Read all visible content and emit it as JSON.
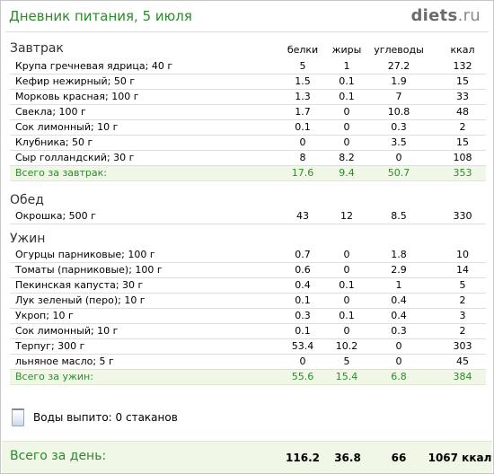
{
  "header": {
    "title": "Дневник питания, 5 июля",
    "logo_main": "diets",
    "logo_tld": ".ru"
  },
  "columns": {
    "protein": "белки",
    "fat": "жиры",
    "carbs": "углеводы",
    "kcal": "ккал"
  },
  "breakfast": {
    "title": "Завтрак",
    "items": [
      {
        "name": "Крупа гречневая ядрица; 40 г",
        "protein": "5",
        "fat": "1",
        "carbs": "27.2",
        "kcal": "132"
      },
      {
        "name": "Кефир нежирный; 50 г",
        "protein": "1.5",
        "fat": "0.1",
        "carbs": "1.9",
        "kcal": "15"
      },
      {
        "name": "Морковь красная; 100 г",
        "protein": "1.3",
        "fat": "0.1",
        "carbs": "7",
        "kcal": "33"
      },
      {
        "name": "Свекла; 100 г",
        "protein": "1.7",
        "fat": "0",
        "carbs": "10.8",
        "kcal": "48"
      },
      {
        "name": "Сок лимонный; 10 г",
        "protein": "0.1",
        "fat": "0",
        "carbs": "0.3",
        "kcal": "2"
      },
      {
        "name": "Клубника; 50 г",
        "protein": "0",
        "fat": "0",
        "carbs": "3.5",
        "kcal": "15"
      },
      {
        "name": "Сыр голландский; 30 г",
        "protein": "8",
        "fat": "8.2",
        "carbs": "0",
        "kcal": "108"
      }
    ],
    "total": {
      "name": "Всего за завтрак:",
      "protein": "17.6",
      "fat": "9.4",
      "carbs": "50.7",
      "kcal": "353"
    }
  },
  "lunch": {
    "title": "Обед",
    "items": [
      {
        "name": "Окрошка; 500 г",
        "protein": "43",
        "fat": "12",
        "carbs": "8.5",
        "kcal": "330"
      }
    ]
  },
  "dinner": {
    "title": "Ужин",
    "items": [
      {
        "name": "Огурцы парниковые; 100 г",
        "protein": "0.7",
        "fat": "0",
        "carbs": "1.8",
        "kcal": "10"
      },
      {
        "name": "Томаты (парниковые); 100 г",
        "protein": "0.6",
        "fat": "0",
        "carbs": "2.9",
        "kcal": "14"
      },
      {
        "name": "Пекинская капуста; 30 г",
        "protein": "0.4",
        "fat": "0.1",
        "carbs": "1",
        "kcal": "5"
      },
      {
        "name": "Лук зеленый (перо); 10 г",
        "protein": "0.1",
        "fat": "0",
        "carbs": "0.4",
        "kcal": "2"
      },
      {
        "name": "Укроп; 10 г",
        "protein": "0.3",
        "fat": "0.1",
        "carbs": "0.4",
        "kcal": "3"
      },
      {
        "name": "Сок лимонный; 10 г",
        "protein": "0.1",
        "fat": "0",
        "carbs": "0.3",
        "kcal": "2"
      },
      {
        "name": "Терпуг; 300 г",
        "protein": "53.4",
        "fat": "10.2",
        "carbs": "0",
        "kcal": "303"
      },
      {
        "name": "льняное масло; 5 г",
        "protein": "0",
        "fat": "5",
        "carbs": "0",
        "kcal": "45"
      }
    ],
    "total": {
      "name": "Всего за ужин:",
      "protein": "55.6",
      "fat": "15.4",
      "carbs": "6.8",
      "kcal": "384"
    }
  },
  "water": {
    "label": "Воды выпито: 0 стаканов",
    "icon": "glass-icon"
  },
  "day_total": {
    "label": "Всего за день:",
    "protein": "116.2",
    "fat": "36.8",
    "carbs": "66",
    "kcal": "1067 ккал"
  },
  "colors": {
    "accent_green": "#2d8a2d",
    "total_bg": "#f0f7e6"
  }
}
